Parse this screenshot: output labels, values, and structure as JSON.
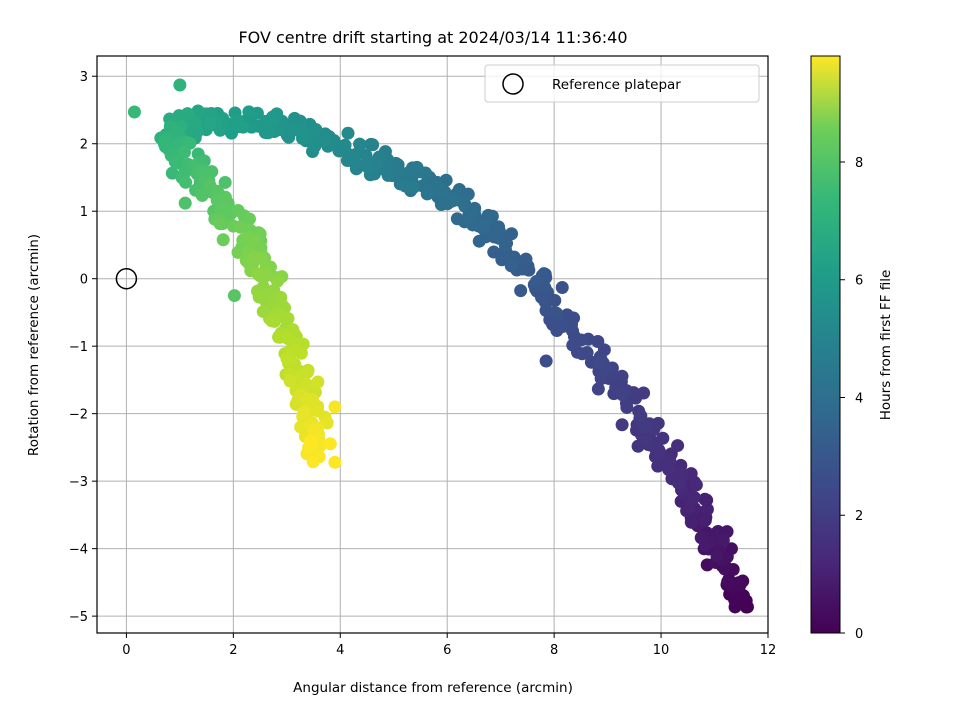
{
  "chart_data": {
    "type": "scatter",
    "title": "FOV centre drift starting at 2024/03/14 11:36:40",
    "xlabel": "Angular distance from reference (arcmin)",
    "ylabel": "Rotation from reference (arcmin)",
    "xlim": [
      -0.55,
      12.0
    ],
    "ylim": [
      -5.25,
      3.3
    ],
    "xticks": [
      0,
      2,
      4,
      6,
      8,
      10,
      12
    ],
    "yticks": [
      -5,
      -4,
      -3,
      -2,
      -1,
      0,
      1,
      2,
      3
    ],
    "grid": true,
    "legend": {
      "placement": "top-right",
      "entries": [
        "Reference platepar"
      ]
    },
    "reference_point": {
      "x": 0,
      "y": 0,
      "label": "Reference platepar",
      "marker": "open-circle"
    },
    "colorbar": {
      "label": "Hours from first FF file",
      "colormap": "viridis",
      "range": [
        0,
        9.8
      ],
      "ticks": [
        0,
        2,
        4,
        6,
        8
      ]
    },
    "drift_path": {
      "description_of_series": "points colored by hours",
      "path": [
        {
          "h": 0.0,
          "x": 11.45,
          "y": -4.85
        },
        {
          "h": 0.15,
          "x": 11.42,
          "y": -4.62
        },
        {
          "h": 0.5,
          "x": 11.0,
          "y": -4.0
        },
        {
          "h": 0.9,
          "x": 10.7,
          "y": -3.4
        },
        {
          "h": 1.3,
          "x": 10.1,
          "y": -2.7
        },
        {
          "h": 1.7,
          "x": 9.6,
          "y": -2.0
        },
        {
          "h": 2.1,
          "x": 8.8,
          "y": -1.2
        },
        {
          "h": 2.5,
          "x": 8.0,
          "y": -0.4
        },
        {
          "h": 2.9,
          "x": 7.3,
          "y": 0.3
        },
        {
          "h": 3.3,
          "x": 6.6,
          "y": 0.9
        },
        {
          "h": 3.7,
          "x": 5.8,
          "y": 1.35
        },
        {
          "h": 4.1,
          "x": 5.0,
          "y": 1.6
        },
        {
          "h": 4.5,
          "x": 4.2,
          "y": 1.85
        },
        {
          "h": 4.9,
          "x": 3.3,
          "y": 2.15
        },
        {
          "h": 5.3,
          "x": 2.4,
          "y": 2.3
        },
        {
          "h": 5.7,
          "x": 1.5,
          "y": 2.3
        },
        {
          "h": 6.1,
          "x": 0.8,
          "y": 2.2
        },
        {
          "h": 6.5,
          "x": 0.9,
          "y": 1.9
        },
        {
          "h": 6.9,
          "x": 1.4,
          "y": 1.5
        },
        {
          "h": 7.3,
          "x": 1.9,
          "y": 1.05
        },
        {
          "h": 7.7,
          "x": 2.3,
          "y": 0.55
        },
        {
          "h": 8.1,
          "x": 2.65,
          "y": -0.05
        },
        {
          "h": 8.5,
          "x": 2.95,
          "y": -0.7
        },
        {
          "h": 8.9,
          "x": 3.2,
          "y": -1.35
        },
        {
          "h": 9.3,
          "x": 3.45,
          "y": -1.95
        },
        {
          "h": 9.8,
          "x": 3.6,
          "y": -2.6
        }
      ],
      "point_count": 640,
      "scatter_x": 0.28,
      "scatter_y": 0.22
    },
    "outliers": [
      {
        "h": 7.2,
        "x": 2.02,
        "y": -0.25
      },
      {
        "h": 2.3,
        "x": 7.85,
        "y": -1.22
      },
      {
        "h": 6.3,
        "x": 1.0,
        "y": 2.87
      },
      {
        "h": 6.6,
        "x": 0.15,
        "y": 2.47
      },
      {
        "h": 7.0,
        "x": 1.1,
        "y": 1.12
      },
      {
        "h": 9.7,
        "x": 3.9,
        "y": -1.9
      },
      {
        "h": 9.8,
        "x": 3.9,
        "y": -2.72
      }
    ]
  }
}
